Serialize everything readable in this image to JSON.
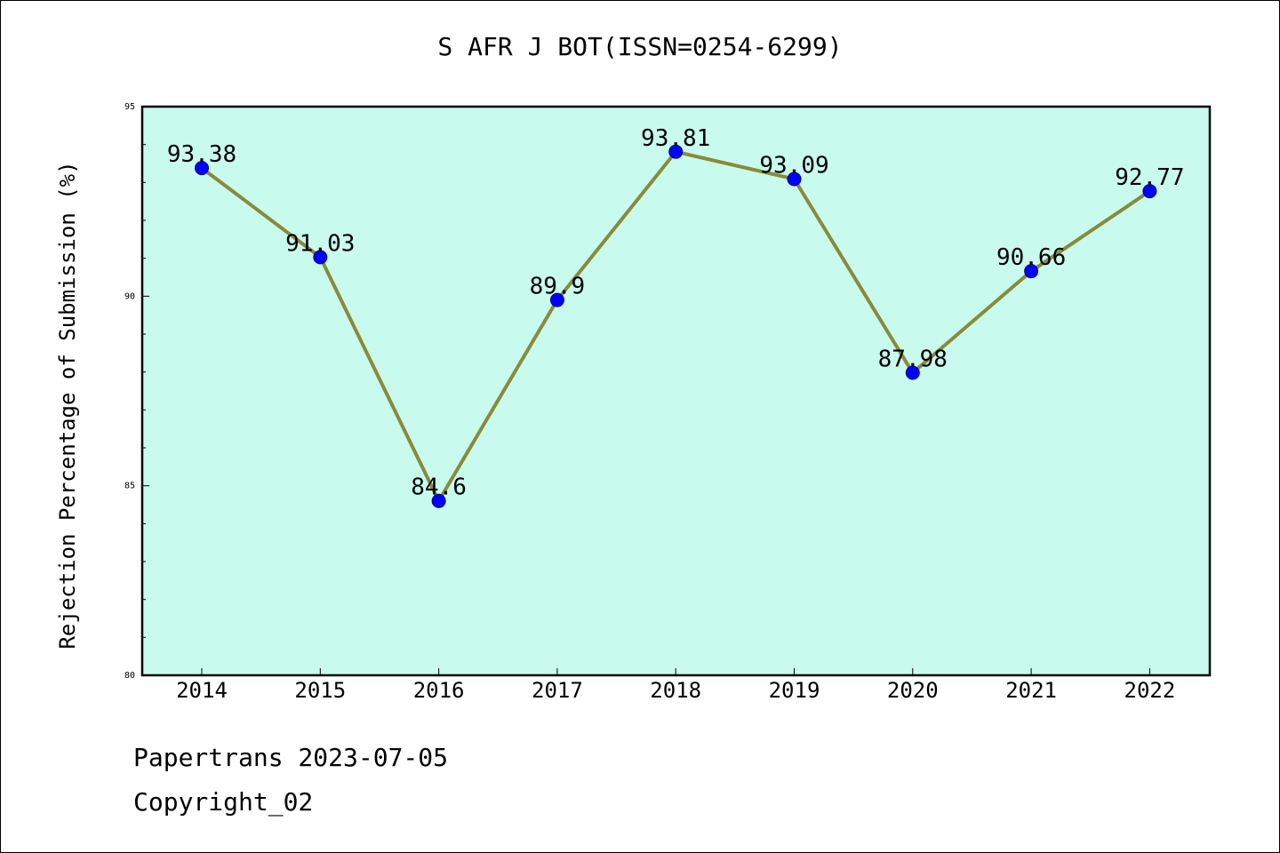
{
  "title": "S AFR J BOT(ISSN=0254-6299)",
  "footer": {
    "line1": "Papertrans 2023-07-05",
    "line2": "Copyright_02"
  },
  "colors": {
    "plot_background": "#c8fbee",
    "line": "#8a8a3a",
    "marker": "#0000ff"
  },
  "chart_data": {
    "type": "line",
    "ylabel": "Rejection Percentage of Submission (%)",
    "ylim": [
      80,
      95
    ],
    "yticks": [
      80,
      85,
      90,
      95
    ],
    "categories": [
      "2014",
      "2015",
      "2016",
      "2017",
      "2018",
      "2019",
      "2020",
      "2021",
      "2022"
    ],
    "values": [
      93.38,
      91.03,
      84.6,
      89.9,
      93.81,
      93.09,
      87.98,
      90.66,
      92.77
    ],
    "data_labels": [
      "93.38",
      "91.03",
      "84.6",
      "89.9",
      "93.81",
      "93.09",
      "87.98",
      "90.66",
      "92.77"
    ],
    "grid": false
  }
}
